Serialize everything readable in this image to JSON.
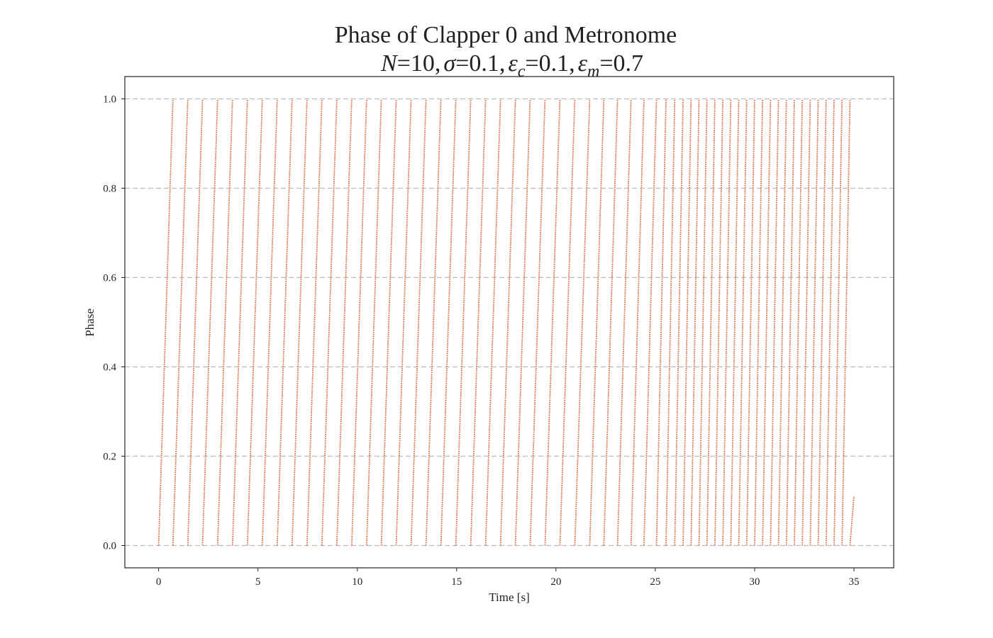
{
  "chart_data": {
    "type": "scatter",
    "title_line1": "Phase of Clapper 0 and Metronome",
    "title_line2": {
      "N": "N",
      "N_val": "10",
      "sigma": "σ",
      "sigma_val": "0.1",
      "eps": "ε",
      "c_sub": "c",
      "c_val": "0.1",
      "m_sub": "m",
      "m_val": "0.7",
      "eq": "=",
      "comma": ","
    },
    "xlabel": "Time [s]",
    "ylabel": "Phase",
    "xlim": [
      -1.7,
      37.0
    ],
    "ylim": [
      -0.05,
      1.05
    ],
    "xticks": [
      0,
      5,
      10,
      15,
      20,
      25,
      30,
      35
    ],
    "xtick_labels": [
      "0",
      "5",
      "10",
      "15",
      "20",
      "25",
      "30",
      "35"
    ],
    "yticks": [
      0.0,
      0.2,
      0.4,
      0.6,
      0.8,
      1.0
    ],
    "ytick_labels": [
      "0.0",
      "0.2",
      "0.4",
      "0.6",
      "0.8",
      "1.0"
    ],
    "grid": "horizontal-dashed",
    "colors": {
      "clapper": "#d96a54",
      "metronome": "#e8c56a",
      "grid": "#bbbbbb"
    },
    "series": [
      {
        "role": "clapper",
        "color": "#d96a54",
        "cycle_starts": [
          0.0,
          0.72,
          1.47,
          2.21,
          2.97,
          3.72,
          4.47,
          5.22,
          5.97,
          6.72,
          7.47,
          8.22,
          8.97,
          9.72,
          10.47,
          11.21,
          11.96,
          12.71,
          13.46,
          14.21,
          14.96,
          15.71,
          16.46,
          17.21,
          17.96,
          18.7,
          19.45,
          20.2,
          20.95,
          21.7,
          22.41,
          23.1,
          23.78,
          24.43,
          25.06,
          25.54,
          25.98,
          26.4,
          26.8,
          27.2,
          27.6,
          28.0,
          28.4,
          28.8,
          29.2,
          29.6,
          30.0,
          30.4,
          30.8,
          31.2,
          31.6,
          32.0,
          32.4,
          32.8,
          33.2,
          33.6,
          34.0,
          34.4,
          34.8
        ],
        "cycle_ends": [
          0.72,
          1.47,
          2.21,
          2.97,
          3.72,
          4.47,
          5.22,
          5.97,
          6.72,
          7.47,
          8.22,
          8.97,
          9.72,
          10.47,
          11.21,
          11.96,
          12.71,
          13.46,
          14.21,
          14.96,
          15.71,
          16.46,
          17.21,
          17.96,
          18.7,
          19.45,
          20.2,
          20.95,
          21.7,
          22.41,
          23.1,
          23.78,
          24.43,
          25.06,
          25.54,
          25.98,
          26.4,
          26.8,
          27.2,
          27.6,
          28.0,
          28.4,
          28.8,
          29.2,
          29.6,
          30.0,
          30.4,
          30.8,
          31.2,
          31.6,
          32.0,
          32.4,
          32.8,
          33.2,
          33.6,
          34.0,
          34.4,
          34.8,
          35.0
        ],
        "final_phase": 0.11
      },
      {
        "role": "metronome",
        "color": "#e8c56a",
        "cycle_starts": [
          0.0,
          0.72,
          1.47,
          2.21,
          2.97,
          3.72,
          4.47,
          5.22,
          5.97,
          6.72,
          7.47,
          8.22,
          8.97,
          9.72,
          10.47,
          11.21,
          11.96,
          12.71,
          13.46,
          14.21,
          14.96,
          15.71,
          16.46,
          17.21,
          17.96,
          18.7,
          19.45,
          20.2,
          20.95,
          21.7,
          22.41,
          23.1,
          23.78,
          24.43,
          25.06,
          25.54,
          25.98,
          26.4,
          26.8,
          27.2,
          27.6,
          28.0,
          28.4,
          28.8,
          29.2,
          29.6,
          30.0,
          30.4,
          30.8,
          31.2,
          31.6,
          32.0,
          32.4,
          32.8,
          33.2,
          33.6,
          34.0,
          34.4,
          34.8
        ],
        "cycle_ends": [
          0.72,
          1.47,
          2.21,
          2.97,
          3.72,
          4.47,
          5.22,
          5.97,
          6.72,
          7.47,
          8.22,
          8.97,
          9.72,
          10.47,
          11.21,
          11.96,
          12.71,
          13.46,
          14.21,
          14.96,
          15.71,
          16.46,
          17.21,
          17.96,
          18.7,
          19.45,
          20.2,
          20.95,
          21.7,
          22.41,
          23.1,
          23.78,
          24.43,
          25.06,
          25.54,
          25.98,
          26.4,
          26.8,
          27.2,
          27.6,
          28.0,
          28.4,
          28.8,
          29.2,
          29.6,
          30.0,
          30.4,
          30.8,
          31.2,
          31.6,
          32.0,
          32.4,
          32.8,
          33.2,
          33.6,
          34.0,
          34.4,
          34.8,
          35.0
        ],
        "final_phase": 0.11
      }
    ]
  }
}
